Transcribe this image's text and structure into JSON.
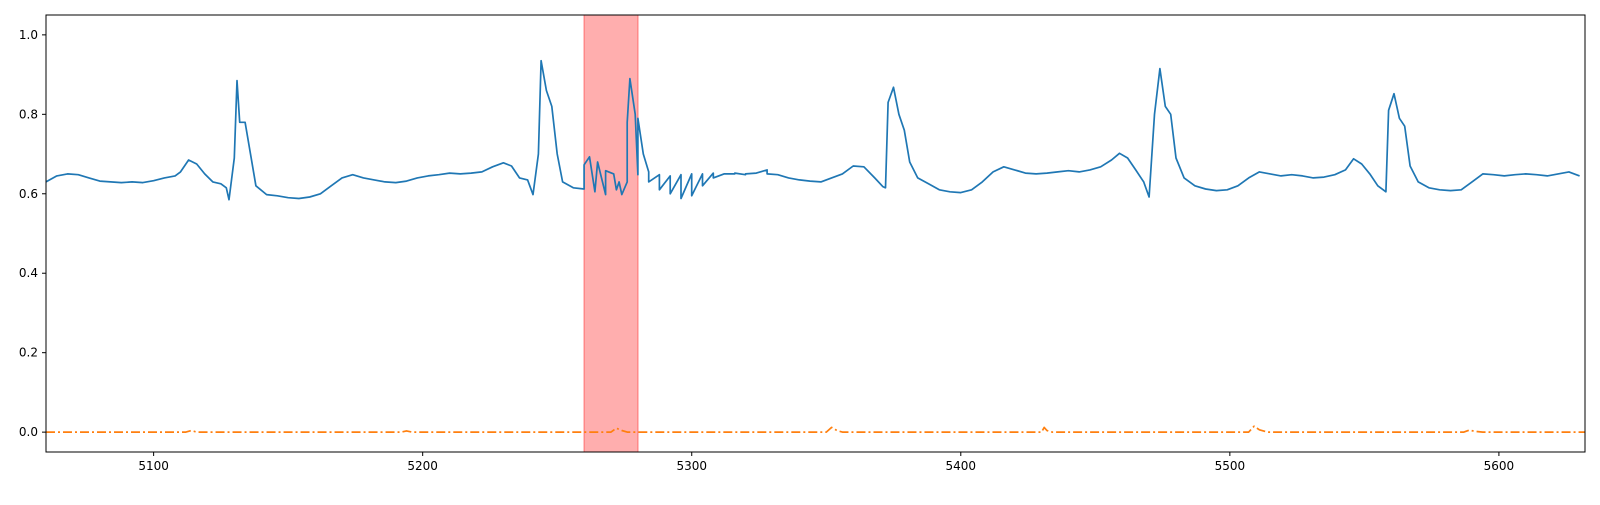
{
  "chart_data": {
    "type": "line",
    "title": "",
    "xlabel": "",
    "ylabel": "",
    "xlim": [
      5060,
      5632
    ],
    "ylim": [
      -0.05,
      1.05
    ],
    "xticks": [
      5100,
      5200,
      5300,
      5400,
      5500,
      5600
    ],
    "yticks": [
      0.0,
      0.2,
      0.4,
      0.6,
      0.8,
      1.0
    ],
    "xtick_labels": [
      "5100",
      "5200",
      "5300",
      "5400",
      "5500",
      "5600"
    ],
    "ytick_labels": [
      "0.0",
      "0.2",
      "0.4",
      "0.6",
      "0.8",
      "1.0"
    ],
    "grid": false,
    "highlight_span": {
      "x0": 5260,
      "x1": 5280,
      "color": "#ff9a9a"
    },
    "series": [
      {
        "style": "solid",
        "color": "#1f77b4",
        "points": [
          [
            5060,
            0.63
          ],
          [
            5064,
            0.645
          ],
          [
            5068,
            0.65
          ],
          [
            5072,
            0.648
          ],
          [
            5076,
            0.64
          ],
          [
            5080,
            0.632
          ],
          [
            5084,
            0.63
          ],
          [
            5088,
            0.628
          ],
          [
            5092,
            0.63
          ],
          [
            5096,
            0.628
          ],
          [
            5100,
            0.633
          ],
          [
            5104,
            0.64
          ],
          [
            5108,
            0.645
          ],
          [
            5110,
            0.655
          ],
          [
            5113,
            0.685
          ],
          [
            5116,
            0.675
          ],
          [
            5119,
            0.65
          ],
          [
            5122,
            0.63
          ],
          [
            5125,
            0.625
          ],
          [
            5127,
            0.615
          ],
          [
            5128,
            0.585
          ],
          [
            5130,
            0.69
          ],
          [
            5131,
            0.885
          ],
          [
            5132,
            0.78
          ],
          [
            5134,
            0.78
          ],
          [
            5136,
            0.7
          ],
          [
            5138,
            0.62
          ],
          [
            5142,
            0.598
          ],
          [
            5146,
            0.595
          ],
          [
            5150,
            0.59
          ],
          [
            5154,
            0.588
          ],
          [
            5158,
            0.592
          ],
          [
            5162,
            0.6
          ],
          [
            5166,
            0.62
          ],
          [
            5170,
            0.64
          ],
          [
            5174,
            0.648
          ],
          [
            5178,
            0.64
          ],
          [
            5182,
            0.635
          ],
          [
            5186,
            0.63
          ],
          [
            5190,
            0.628
          ],
          [
            5194,
            0.632
          ],
          [
            5198,
            0.64
          ],
          [
            5202,
            0.645
          ],
          [
            5206,
            0.648
          ],
          [
            5210,
            0.652
          ],
          [
            5214,
            0.65
          ],
          [
            5218,
            0.652
          ],
          [
            5222,
            0.655
          ],
          [
            5226,
            0.668
          ],
          [
            5230,
            0.678
          ],
          [
            5233,
            0.67
          ],
          [
            5236,
            0.64
          ],
          [
            5239,
            0.635
          ],
          [
            5241,
            0.598
          ],
          [
            5243,
            0.7
          ],
          [
            5244,
            0.935
          ],
          [
            5246,
            0.86
          ],
          [
            5248,
            0.82
          ],
          [
            5250,
            0.7
          ],
          [
            5252,
            0.63
          ],
          [
            5256,
            0.615
          ],
          [
            5260,
            0.612
          ],
          [
            5264,
            0.605
          ],
          [
            5268,
            0.598
          ],
          [
            5272,
            0.61
          ],
          [
            5276,
            0.63
          ],
          [
            5280,
            0.648
          ],
          [
            5284,
            0.655
          ],
          [
            5288,
            0.648
          ],
          [
            5292,
            0.645
          ],
          [
            5296,
            0.648
          ],
          [
            5300,
            0.65
          ],
          [
            5304,
            0.65
          ],
          [
            5308,
            0.652
          ],
          [
            5312,
            0.65
          ],
          [
            5316,
            0.65
          ],
          [
            5320,
            0.648
          ],
          [
            5324,
            0.652
          ],
          [
            5328,
            0.66
          ],
          [
            5260,
            0.673
          ],
          [
            5262,
            0.693
          ],
          [
            5265,
            0.68
          ],
          [
            5268,
            0.658
          ],
          [
            5271,
            0.65
          ],
          [
            5273,
            0.63
          ],
          [
            5274,
            0.598
          ],
          [
            5276,
            0.78
          ],
          [
            5277,
            0.89
          ],
          [
            5279,
            0.8
          ],
          [
            5280,
            0.79
          ],
          [
            5282,
            0.7
          ],
          [
            5284,
            0.63
          ],
          [
            5288,
            0.61
          ],
          [
            5292,
            0.6
          ],
          [
            5296,
            0.588
          ],
          [
            5300,
            0.595
          ],
          [
            5304,
            0.62
          ],
          [
            5308,
            0.64
          ],
          [
            5312,
            0.65
          ],
          [
            5316,
            0.652
          ],
          [
            5320,
            0.65
          ],
          [
            5324,
            0.652
          ],
          [
            5328,
            0.65
          ],
          [
            5332,
            0.648
          ],
          [
            5336,
            0.64
          ],
          [
            5340,
            0.635
          ],
          [
            5344,
            0.632
          ],
          [
            5348,
            0.63
          ],
          [
            5352,
            0.64
          ],
          [
            5356,
            0.65
          ],
          [
            5360,
            0.67
          ],
          [
            5364,
            0.668
          ],
          [
            5368,
            0.64
          ],
          [
            5371,
            0.618
          ],
          [
            5372,
            0.615
          ],
          [
            5373,
            0.83
          ],
          [
            5375,
            0.868
          ],
          [
            5377,
            0.8
          ],
          [
            5379,
            0.76
          ],
          [
            5381,
            0.68
          ],
          [
            5384,
            0.64
          ],
          [
            5388,
            0.625
          ],
          [
            5392,
            0.61
          ],
          [
            5396,
            0.605
          ],
          [
            5400,
            0.603
          ],
          [
            5404,
            0.61
          ],
          [
            5408,
            0.63
          ],
          [
            5412,
            0.655
          ],
          [
            5416,
            0.668
          ],
          [
            5420,
            0.66
          ],
          [
            5424,
            0.652
          ],
          [
            5428,
            0.65
          ],
          [
            5432,
            0.652
          ],
          [
            5436,
            0.655
          ],
          [
            5440,
            0.658
          ],
          [
            5444,
            0.655
          ],
          [
            5448,
            0.66
          ],
          [
            5452,
            0.668
          ],
          [
            5456,
            0.685
          ],
          [
            5459,
            0.702
          ],
          [
            5462,
            0.69
          ],
          [
            5465,
            0.66
          ],
          [
            5468,
            0.63
          ],
          [
            5470,
            0.592
          ],
          [
            5472,
            0.8
          ],
          [
            5474,
            0.915
          ],
          [
            5476,
            0.82
          ],
          [
            5478,
            0.8
          ],
          [
            5480,
            0.69
          ],
          [
            5483,
            0.64
          ],
          [
            5487,
            0.62
          ],
          [
            5491,
            0.612
          ],
          [
            5495,
            0.608
          ],
          [
            5499,
            0.61
          ],
          [
            5503,
            0.62
          ],
          [
            5507,
            0.64
          ],
          [
            5511,
            0.655
          ],
          [
            5515,
            0.65
          ],
          [
            5519,
            0.645
          ],
          [
            5523,
            0.648
          ],
          [
            5527,
            0.645
          ],
          [
            5531,
            0.64
          ],
          [
            5535,
            0.642
          ],
          [
            5539,
            0.648
          ],
          [
            5543,
            0.66
          ],
          [
            5546,
            0.688
          ],
          [
            5549,
            0.675
          ],
          [
            5552,
            0.65
          ],
          [
            5555,
            0.62
          ],
          [
            5558,
            0.605
          ],
          [
            5559,
            0.81
          ],
          [
            5561,
            0.852
          ],
          [
            5563,
            0.79
          ],
          [
            5565,
            0.77
          ],
          [
            5567,
            0.67
          ],
          [
            5570,
            0.63
          ],
          [
            5574,
            0.615
          ],
          [
            5578,
            0.61
          ],
          [
            5582,
            0.608
          ],
          [
            5586,
            0.61
          ],
          [
            5590,
            0.63
          ],
          [
            5594,
            0.65
          ],
          [
            5598,
            0.648
          ],
          [
            5602,
            0.645
          ],
          [
            5606,
            0.648
          ],
          [
            5610,
            0.65
          ],
          [
            5614,
            0.648
          ],
          [
            5618,
            0.645
          ],
          [
            5622,
            0.65
          ],
          [
            5626,
            0.655
          ],
          [
            5630,
            0.645
          ]
        ]
      },
      {
        "style": "dashdot",
        "color": "#ff7f0e",
        "points": [
          [
            5060,
            0.0
          ],
          [
            5112,
            0.0
          ],
          [
            5114,
            0.004
          ],
          [
            5116,
            0.0
          ],
          [
            5192,
            0.0
          ],
          [
            5194,
            0.003
          ],
          [
            5196,
            0.0
          ],
          [
            5270,
            0.0
          ],
          [
            5272,
            0.01
          ],
          [
            5274,
            0.004
          ],
          [
            5276,
            0.0
          ],
          [
            5350,
            0.0
          ],
          [
            5352,
            0.012
          ],
          [
            5354,
            0.004
          ],
          [
            5356,
            0.0
          ],
          [
            5430,
            0.0
          ],
          [
            5431,
            0.012
          ],
          [
            5432,
            0.004
          ],
          [
            5434,
            0.0
          ],
          [
            5507,
            0.0
          ],
          [
            5509,
            0.015
          ],
          [
            5511,
            0.006
          ],
          [
            5514,
            0.0
          ],
          [
            5587,
            0.0
          ],
          [
            5589,
            0.005
          ],
          [
            5591,
            0.002
          ],
          [
            5594,
            0.0
          ],
          [
            5632,
            0.0
          ]
        ]
      }
    ]
  }
}
